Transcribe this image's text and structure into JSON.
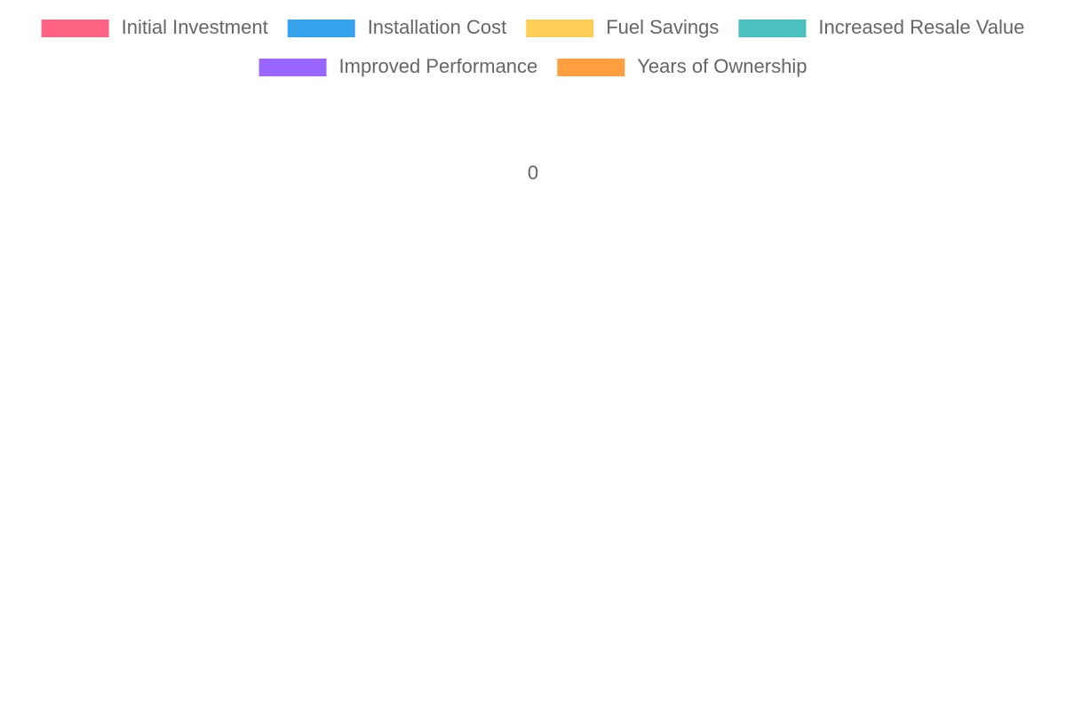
{
  "chart_data": {
    "type": "polarArea",
    "categories": [
      "Initial Investment",
      "Installation Cost",
      "Fuel Savings",
      "Increased Resale Value",
      "Improved Performance",
      "Years of Ownership"
    ],
    "colors": [
      "#ff6384",
      "#36a2eb",
      "#ffce56",
      "#4bc0c0",
      "#9966ff",
      "#ff9f40"
    ],
    "values": [
      0,
      0,
      0,
      0,
      0,
      0
    ],
    "rticks": [
      0
    ],
    "legend": "top"
  }
}
